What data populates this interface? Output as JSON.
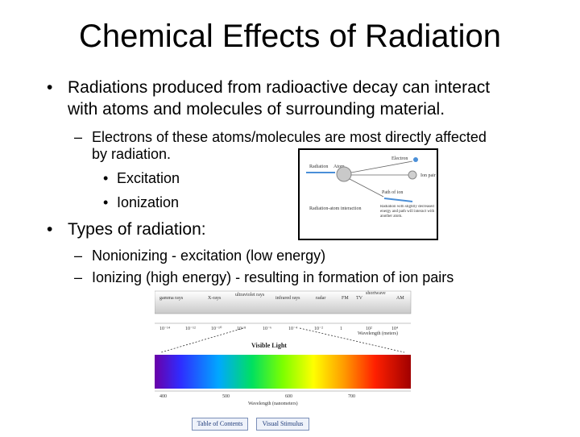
{
  "slide": {
    "title": "Chemical Effects of Radiation",
    "bullets": {
      "b1_line1": "Radiations produced from radioactive decay can interact",
      "b1_line2": "with atoms and molecules of surrounding material.",
      "sub1_line1": "Electrons of these atoms/molecules are most directly affected",
      "sub1_line2": "by radiation.",
      "subsub1": "Excitation",
      "subsub2": "Ionization",
      "b2": "Types of radiation:",
      "sub2": "Nonionizing - excitation (low energy)",
      "sub3": "Ionizing (high energy) - resulting in formation of ion pairs"
    },
    "bullet_glyph": "•",
    "dash_glyph": "–"
  },
  "atom_figure": {
    "radiation": "Radiation",
    "atom": "Atom",
    "electron": "Electron",
    "ion_pair": "Ion pair",
    "path_label": "Path of ion",
    "caption": "Radiation-atom interaction",
    "note": "Radiation with slightly decreased energy and path will interact with another atom."
  },
  "spectrum": {
    "bands": [
      "gamma rays",
      "X-rays",
      "ultraviolet rays",
      "infrared rays",
      "radar",
      "FM",
      "TV",
      "shortwave",
      "AM"
    ],
    "wavelengths_m": [
      "10⁻¹⁴",
      "10⁻¹²",
      "10⁻¹⁰",
      "10⁻⁸",
      "10⁻⁶",
      "10⁻⁴",
      "10⁻²",
      "1",
      "10²",
      "10⁴"
    ],
    "wavelength_label": "Wavelength (meters)",
    "visible_label": "Visible Light",
    "nm_ticks": [
      "400",
      "500",
      "600",
      "700"
    ],
    "nm_label": "Wavelength (nanometers)",
    "buttons": [
      "Table of Contents",
      "Visual Stimulus"
    ]
  }
}
